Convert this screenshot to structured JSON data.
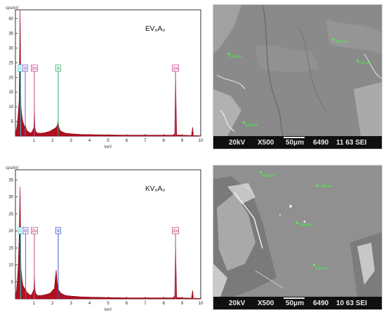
{
  "chart_data": [
    {
      "type": "line",
      "sample_label": "EV₀A₀",
      "ylabel": "cps/eV",
      "xlabel": "keV",
      "xlim": [
        0,
        10
      ],
      "ylim": [
        0,
        43
      ],
      "x_ticks": [
        1,
        2,
        3,
        4,
        5,
        6,
        7,
        8,
        9,
        10
      ],
      "y_ticks": [
        5,
        10,
        15,
        20,
        25,
        30,
        35,
        40
      ],
      "series": [
        {
          "name": "",
          "x": [
            0.0,
            0.05,
            0.1,
            0.15,
            0.2,
            0.25,
            0.3,
            0.35,
            0.4,
            0.45,
            0.5,
            0.55,
            0.6,
            0.7,
            0.8,
            0.9,
            1.0,
            1.02,
            1.05,
            1.1,
            1.2,
            1.4,
            1.6,
            1.8,
            1.9,
            2.0,
            2.1,
            2.2,
            2.25,
            2.3,
            2.35,
            2.4,
            2.5,
            2.7,
            3.0,
            3.5,
            4.0,
            5.0,
            6.0,
            7.0,
            8.0,
            8.5,
            8.6,
            8.64,
            8.7,
            9.0,
            9.5,
            9.57,
            9.6,
            10.0
          ],
          "y": [
            1,
            2,
            4,
            8,
            12,
            43,
            10,
            7,
            5,
            4,
            3,
            3.5,
            2,
            1.5,
            1,
            1.5,
            3,
            11,
            3,
            1.5,
            1,
            1,
            1.2,
            1.5,
            1.8,
            2.2,
            2.5,
            3,
            3.5,
            5,
            3,
            2,
            1.5,
            1,
            0.8,
            0.6,
            0.5,
            0.4,
            0.3,
            0.3,
            0.3,
            0.3,
            0.8,
            22,
            0.4,
            0.3,
            0.2,
            3,
            0.2,
            0.1
          ]
        }
      ],
      "peaks": [
        {
          "label": "C",
          "x": 0.28,
          "y": 23,
          "color": "#1ec8c8"
        },
        {
          "label": "O",
          "x": 0.53,
          "y": 23,
          "color": "#7a5cc8"
        },
        {
          "label": "Zn",
          "x": 1.02,
          "y": 23,
          "color": "#c84a8a"
        },
        {
          "label": "S",
          "x": 2.31,
          "y": 23,
          "color": "#2cb06a"
        },
        {
          "label": "Zn",
          "x": 8.64,
          "y": 23,
          "color": "#c84a8a"
        }
      ]
    },
    {
      "type": "line",
      "sample_label": "KV₀A₀",
      "ylabel": "cps/eV",
      "xlabel": "keV",
      "xlim": [
        0,
        10
      ],
      "ylim": [
        0,
        38
      ],
      "x_ticks": [
        1,
        2,
        3,
        4,
        5,
        6,
        7,
        8,
        9,
        10
      ],
      "y_ticks": [
        5,
        10,
        15,
        20,
        25,
        30,
        35
      ],
      "series": [
        {
          "name": "",
          "x": [
            0.0,
            0.05,
            0.1,
            0.15,
            0.2,
            0.25,
            0.3,
            0.35,
            0.4,
            0.45,
            0.5,
            0.55,
            0.6,
            0.7,
            0.8,
            0.9,
            1.0,
            1.02,
            1.05,
            1.1,
            1.2,
            1.4,
            1.6,
            1.8,
            1.9,
            2.0,
            2.1,
            2.15,
            2.2,
            2.25,
            2.3,
            2.4,
            2.5,
            2.7,
            3.0,
            3.5,
            4.0,
            5.0,
            6.0,
            7.0,
            8.0,
            8.5,
            8.6,
            8.64,
            8.7,
            9.0,
            9.5,
            9.57,
            9.6,
            10.0
          ],
          "y": [
            1,
            2,
            5,
            10,
            18,
            33,
            9,
            6,
            4,
            3.5,
            3,
            3,
            2,
            1.5,
            1,
            1.5,
            3,
            8,
            3,
            1.5,
            1,
            1,
            1.2,
            1.5,
            1.8,
            2.5,
            3,
            6,
            8.5,
            5,
            3,
            2,
            1.5,
            1,
            0.8,
            0.6,
            0.5,
            0.4,
            0.3,
            0.3,
            0.3,
            0.3,
            0.8,
            17,
            0.4,
            0.3,
            0.2,
            2.5,
            0.2,
            0.1
          ]
        }
      ],
      "peaks": [
        {
          "label": "C",
          "x": 0.28,
          "y": 20,
          "color": "#1ec8c8"
        },
        {
          "label": "O",
          "x": 0.55,
          "y": 20,
          "color": "#7a5cc8"
        },
        {
          "label": "Zn",
          "x": 1.02,
          "y": 20,
          "color": "#c84a8a"
        },
        {
          "label": "S",
          "x": 2.31,
          "y": 20,
          "color": "#3a5cc8"
        },
        {
          "label": "Zn",
          "x": 8.64,
          "y": 20,
          "color": "#c84a8a"
        }
      ]
    }
  ],
  "sem_images": [
    {
      "info": {
        "kv": "20kV",
        "mag": "X500",
        "scale": "50μm",
        "code": "6490",
        "id": "11 63 SEI"
      },
      "measurements": [
        {
          "label": "2.42 μm"
        },
        {
          "label": "3.00 μm"
        },
        {
          "label": "2.12 μm"
        },
        {
          "label": "2.06 μm"
        }
      ]
    },
    {
      "info": {
        "kv": "20kV",
        "mag": "X500",
        "scale": "50μm",
        "code": "6490",
        "id": "10 63 SEI"
      },
      "measurements": [
        {
          "label": "4.88 μm"
        },
        {
          "label": "4.40 μm"
        },
        {
          "label": "2.44 μm"
        },
        {
          "label": "3.94 μm"
        }
      ]
    }
  ]
}
